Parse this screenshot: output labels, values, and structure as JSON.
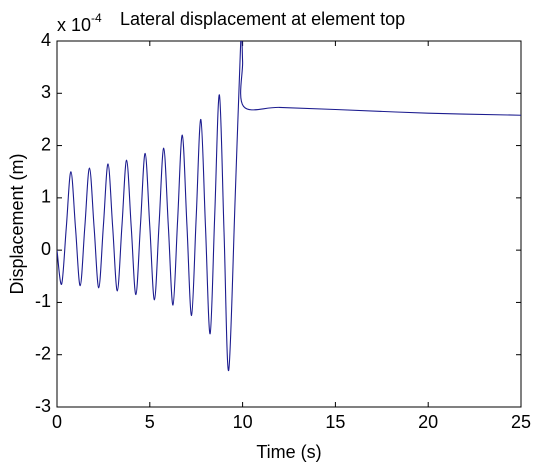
{
  "chart_data": {
    "type": "line",
    "title": "Lateral displacement at element top",
    "multiplier": "x 10",
    "multiplier_exponent": "-4",
    "x_label": "Time (s)",
    "y_label": "Displacement (m)",
    "xlim": [
      0,
      25
    ],
    "ylim": [
      -3,
      4
    ],
    "xticks": [
      0,
      5,
      10,
      15,
      20,
      25
    ],
    "yticks": [
      -3,
      -2,
      -1,
      0,
      1,
      2,
      3,
      4
    ],
    "grid": false,
    "series": [
      {
        "name": "Displacement",
        "color": "#1c1c8f",
        "x": [
          0,
          0.25,
          0.5,
          0.75,
          1.0,
          1.25,
          1.5,
          1.75,
          2.0,
          2.25,
          2.5,
          2.75,
          3.0,
          3.25,
          3.5,
          3.75,
          4.0,
          4.25,
          4.5,
          4.75,
          5.0,
          5.25,
          5.5,
          5.75,
          6.0,
          6.25,
          6.5,
          6.75,
          7.0,
          7.25,
          7.5,
          7.75,
          8.0,
          8.25,
          8.5,
          8.75,
          9.0,
          9.25,
          9.6,
          9.9,
          10.0,
          10.05,
          12,
          15,
          20,
          25
        ],
        "values": [
          0,
          -0.65,
          0.43,
          1.5,
          0.41,
          -0.68,
          0.45,
          1.57,
          0.43,
          -0.72,
          0.47,
          1.65,
          0.44,
          -0.78,
          0.47,
          1.72,
          0.44,
          -0.85,
          0.5,
          1.85,
          0.45,
          -0.95,
          0.5,
          1.95,
          0.45,
          -1.05,
          0.58,
          2.2,
          0.48,
          -1.25,
          0.63,
          2.5,
          0.45,
          -1.6,
          0.69,
          2.97,
          0.34,
          -2.3,
          1.0,
          4.0,
          3.6,
          2.75,
          2.73,
          2.69,
          2.62,
          2.58
        ]
      }
    ]
  }
}
